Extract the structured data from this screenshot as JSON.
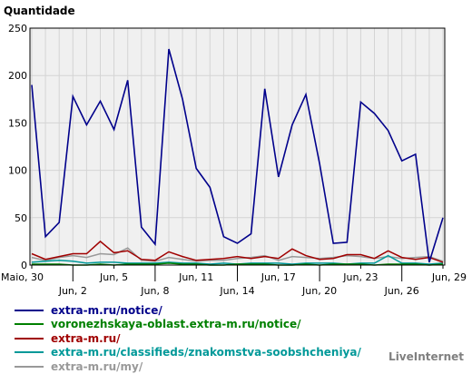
{
  "chart_data": {
    "type": "line",
    "ylabel": "Quantidade",
    "ylim": [
      0,
      250
    ],
    "yticks": [
      0,
      50,
      100,
      150,
      200,
      250
    ],
    "categories": [
      "Maio, 30",
      "May 31",
      "Jun 1",
      "Jun, 2",
      "Jun 3",
      "Jun 4",
      "Jun, 5",
      "Jun 6",
      "Jun 7",
      "Jun, 8",
      "Jun 9",
      "Jun 10",
      "Jun, 11",
      "Jun 12",
      "Jun 13",
      "Jun, 14",
      "Jun 15",
      "Jun 16",
      "Jun, 17",
      "Jun 18",
      "Jun 19",
      "Jun, 20",
      "Jun 21",
      "Jun 22",
      "Jun, 23",
      "Jun 24",
      "Jun 25",
      "Jun, 26",
      "Jun 27",
      "Jun 28",
      "Jun, 29"
    ],
    "xtick_labels": [
      {
        "index": 0,
        "label": "Maio, 30",
        "row": 1
      },
      {
        "index": 3,
        "label": "Jun, 2",
        "row": 2
      },
      {
        "index": 6,
        "label": "Jun, 5",
        "row": 1
      },
      {
        "index": 9,
        "label": "Jun, 8",
        "row": 2
      },
      {
        "index": 12,
        "label": "Jun, 11",
        "row": 1
      },
      {
        "index": 15,
        "label": "Jun, 14",
        "row": 2
      },
      {
        "index": 18,
        "label": "Jun, 17",
        "row": 1
      },
      {
        "index": 21,
        "label": "Jun, 20",
        "row": 2
      },
      {
        "index": 24,
        "label": "Jun, 23",
        "row": 1
      },
      {
        "index": 27,
        "label": "Jun, 26",
        "row": 2
      },
      {
        "index": 30,
        "label": "Jun, 29",
        "row": 1
      }
    ],
    "grid": true,
    "series": [
      {
        "name": "extra-m.ru/notice/",
        "color": "#00008b",
        "values": [
          190,
          30,
          45,
          178,
          148,
          173,
          143,
          195,
          40,
          22,
          228,
          175,
          102,
          82,
          30,
          23,
          33,
          186,
          93,
          148,
          180,
          107,
          23,
          24,
          172,
          160,
          142,
          110,
          117,
          3,
          50
        ]
      },
      {
        "name": "voronezhskaya-oblast.extra-m.ru/notice/",
        "color": "#008000",
        "values": [
          1,
          1,
          1,
          0,
          0,
          1,
          0,
          1,
          1,
          1,
          2,
          1,
          1,
          0,
          0,
          1,
          1,
          1,
          0,
          0,
          1,
          0,
          1,
          1,
          1,
          0,
          1,
          1,
          1,
          0,
          1
        ]
      },
      {
        "name": "extra-m.ru/",
        "color": "#a00000",
        "values": [
          12,
          6,
          9,
          12,
          12,
          25,
          13,
          15,
          6,
          5,
          14,
          9,
          5,
          6,
          7,
          9,
          7,
          9,
          7,
          17,
          10,
          6,
          7,
          11,
          11,
          7,
          15,
          8,
          6,
          8,
          3
        ]
      },
      {
        "name": "extra-m.ru/classifieds/znakomstva-soobshcheniya/",
        "color": "#009999",
        "values": [
          3,
          4,
          5,
          4,
          2,
          3,
          3,
          2,
          2,
          2,
          3,
          2,
          2,
          1,
          2,
          1,
          2,
          2,
          2,
          1,
          2,
          2,
          2,
          1,
          2,
          2,
          10,
          2,
          2,
          1,
          2
        ]
      },
      {
        "name": "extra-m.ru/my/",
        "color": "#999999",
        "values": [
          8,
          5,
          8,
          10,
          8,
          12,
          11,
          18,
          5,
          4,
          8,
          6,
          4,
          5,
          5,
          7,
          8,
          10,
          5,
          9,
          8,
          7,
          8,
          10,
          9,
          7,
          9,
          7,
          8,
          9,
          4
        ]
      }
    ]
  },
  "credit": "LiveInternet"
}
